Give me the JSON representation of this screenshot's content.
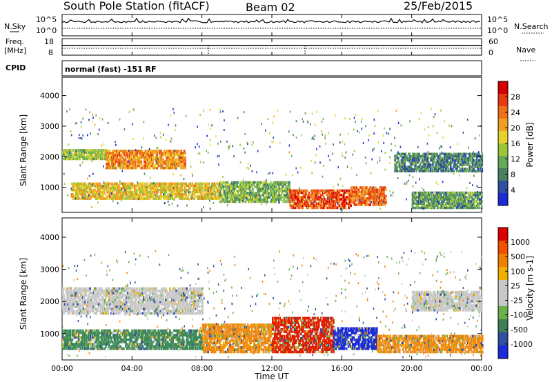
{
  "header": {
    "station": "South Pole Station (fitACF)",
    "beam": "Beam 02",
    "date": "25/Feb/2015"
  },
  "aux": {
    "nsky_label": "N.Sky",
    "nsky_ticks": [
      "10^5",
      "10^0"
    ],
    "nsearch_label": "N.Search",
    "nsearch_ticks": [
      "10^5",
      "10^0"
    ],
    "freq_label_line1": "Freq.",
    "freq_label_line2": "[MHz]",
    "freq_ticks": [
      "18",
      "8"
    ],
    "nave_label": "Nave",
    "nave_ticks": [
      "60",
      "0"
    ],
    "cpid_label": "CPID",
    "cpid_text": "normal (fast) -151 RF"
  },
  "chart_data": [
    {
      "type": "heatmap",
      "panel": "power",
      "ylabel": "Slant Range [km]",
      "y_ticks": [
        1000,
        2000,
        3000,
        4000
      ],
      "ylim": [
        180,
        4600
      ],
      "x_ticks": [
        "00:00",
        "04:00",
        "08:00",
        "12:00",
        "16:00",
        "20:00",
        "00:00"
      ],
      "xlim_hours": [
        0,
        24
      ],
      "colorbar": {
        "label": "Power [dB]",
        "ticks": [
          "28",
          "24",
          "20",
          "16",
          "12",
          "8",
          "4"
        ],
        "range": [
          0,
          32
        ],
        "colors": [
          "#1a2bd8",
          "#2f4fa0",
          "#4a8060",
          "#66a85a",
          "#9bc63a",
          "#e6d22a",
          "#f0a020",
          "#f07018",
          "#e83a10",
          "#d40000"
        ]
      },
      "bands": [
        {
          "t0": 0.0,
          "t1": 2.5,
          "r0": 1900,
          "r1": 2200,
          "level": 14
        },
        {
          "t0": 2.5,
          "t1": 7.0,
          "r0": 1600,
          "r1": 2200,
          "level": 22
        },
        {
          "t0": 0.5,
          "t1": 9.0,
          "r0": 600,
          "r1": 1100,
          "level": 18
        },
        {
          "t0": 9.0,
          "t1": 13.0,
          "r0": 500,
          "r1": 1200,
          "level": 12
        },
        {
          "t0": 13.0,
          "t1": 16.5,
          "r0": 300,
          "r1": 900,
          "level": 26
        },
        {
          "t0": 16.5,
          "t1": 18.5,
          "r0": 400,
          "r1": 1000,
          "level": 24
        },
        {
          "t0": 19.0,
          "t1": 24.0,
          "r0": 1500,
          "r1": 2100,
          "level": 8
        },
        {
          "t0": 20.0,
          "t1": 24.0,
          "r0": 300,
          "r1": 800,
          "level": 10
        }
      ]
    },
    {
      "type": "heatmap",
      "panel": "velocity",
      "ylabel": "Slant Range [km]",
      "xlabel": "Time UT",
      "y_ticks": [
        1000,
        2000,
        3000,
        4000
      ],
      "ylim": [
        180,
        4600
      ],
      "x_ticks": [
        "00:00",
        "04:00",
        "08:00",
        "12:00",
        "16:00",
        "20:00",
        "00:00"
      ],
      "xlim_hours": [
        0,
        24
      ],
      "colorbar": {
        "label": "Velocity [m s-1]",
        "ticks": [
          "1000",
          "500",
          "100",
          "25",
          "-25",
          "-100",
          "-500",
          "-1000"
        ],
        "colors": [
          "#1a2bd8",
          "#2f4fa0",
          "#3f7f55",
          "#6ab04c",
          "#c8c8c8",
          "#c8c8c8",
          "#f0b000",
          "#f08000",
          "#f05000",
          "#e00000"
        ]
      },
      "bands": [
        {
          "t0": 0.0,
          "t1": 8.0,
          "r0": 1600,
          "r1": 2400,
          "level": "grey"
        },
        {
          "t0": 0.0,
          "t1": 8.0,
          "r0": 500,
          "r1": 1100,
          "level": "green"
        },
        {
          "t0": 8.0,
          "t1": 12.0,
          "r0": 400,
          "r1": 1300,
          "level": "orange"
        },
        {
          "t0": 12.0,
          "t1": 15.5,
          "r0": 400,
          "r1": 1500,
          "level": "red"
        },
        {
          "t0": 15.5,
          "t1": 18.0,
          "r0": 500,
          "r1": 1200,
          "level": "blue"
        },
        {
          "t0": 18.0,
          "t1": 24.0,
          "r0": 400,
          "r1": 900,
          "level": "orange"
        },
        {
          "t0": 20.0,
          "t1": 24.0,
          "r0": 1700,
          "r1": 2300,
          "level": "grey"
        }
      ]
    }
  ]
}
